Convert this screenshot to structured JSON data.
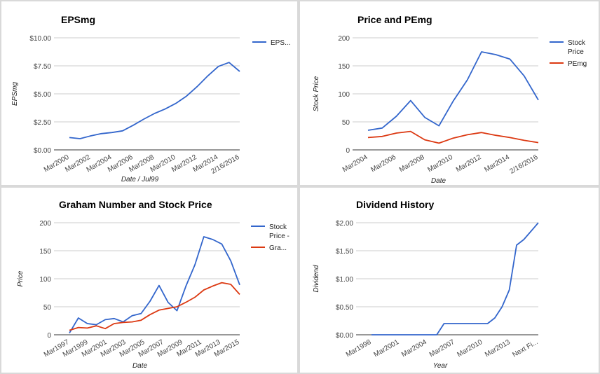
{
  "colors": {
    "blue": "#3366cc",
    "red": "#dc3912"
  },
  "chart_data": [
    {
      "id": "eps",
      "type": "line",
      "title": "EPSmg",
      "xlabel": "Date / Jul99",
      "ylabel": "EPSmg",
      "ylim": [
        0,
        10
      ],
      "y_ticks": [
        "$0.00",
        "$2.50",
        "$5.00",
        "$7.50",
        "$10.00"
      ],
      "x_tick_labels": [
        "Mar2000",
        "Mar2002",
        "Mar2004",
        "Mar2006",
        "Mar2008",
        "Mar2010",
        "Mar2012",
        "Mar2014",
        "2/16/2016"
      ],
      "legend_position": "right",
      "series": [
        {
          "name": "EPS...",
          "color": "#3366cc",
          "values": [
            1.1,
            1.0,
            1.25,
            1.45,
            1.55,
            1.7,
            2.2,
            2.75,
            3.25,
            3.65,
            4.15,
            4.8,
            5.65,
            6.6,
            7.45,
            7.8,
            7.0
          ]
        }
      ]
    },
    {
      "id": "pe",
      "type": "line",
      "title": "Price and PEmg",
      "xlabel": "Date",
      "ylabel": "Stock Price",
      "ylim": [
        0,
        200
      ],
      "y_ticks": [
        "0",
        "50",
        "100",
        "150",
        "200"
      ],
      "x_tick_labels": [
        "Mar2004",
        "Mar2006",
        "Mar2008",
        "Mar2010",
        "Mar2012",
        "Mar2014",
        "2/16/2016"
      ],
      "legend_position": "right",
      "series": [
        {
          "name": "Stock Price",
          "color": "#3366cc",
          "values": [
            35,
            39,
            60,
            88,
            58,
            43,
            87,
            125,
            175,
            170,
            162,
            132,
            89
          ]
        },
        {
          "name": "PEmg",
          "color": "#dc3912",
          "values": [
            22,
            24,
            30,
            33,
            18,
            12,
            21,
            27,
            31,
            26,
            22,
            17,
            13
          ]
        }
      ]
    },
    {
      "id": "graham",
      "type": "line",
      "title": "Graham Number and Stock Price",
      "xlabel": "Date",
      "ylabel": "Price",
      "ylim": [
        0,
        200
      ],
      "y_ticks": [
        "0",
        "50",
        "100",
        "150",
        "200"
      ],
      "x_tick_labels": [
        "Mar1997",
        "Mar1999",
        "Mar2001",
        "Mar2003",
        "Mar2005",
        "Mar2007",
        "Mar2009",
        "Mar2011",
        "Mar2013",
        "Mar2015"
      ],
      "legend_position": "right",
      "series": [
        {
          "name": "Stock Price -",
          "color": "#3366cc",
          "values": [
            3,
            30,
            20,
            18,
            27,
            29,
            23,
            34,
            38,
            60,
            88,
            58,
            43,
            87,
            125,
            175,
            170,
            162,
            132,
            89
          ]
        },
        {
          "name": "Gra...",
          "color": "#dc3912",
          "values": [
            8,
            13,
            12,
            16,
            11,
            20,
            22,
            23,
            26,
            36,
            44,
            47,
            50,
            58,
            67,
            80,
            87,
            93,
            90,
            72
          ]
        }
      ]
    },
    {
      "id": "dividend",
      "type": "line",
      "title": "Dividend History",
      "xlabel": "Year",
      "ylabel": "Dividend",
      "ylim": [
        0,
        2
      ],
      "y_ticks": [
        "$0.00",
        "$0.50",
        "$1.00",
        "$1.50",
        "$2.00"
      ],
      "x_tick_labels": [
        "Mar1998",
        "Mar2001",
        "Mar2004",
        "Mar2007",
        "Mar2010",
        "Mar2013",
        "Next Fi..."
      ],
      "series": [
        {
          "name": "",
          "color": "#3366cc",
          "values": [
            0,
            0,
            0,
            0,
            0,
            0,
            0,
            0,
            0,
            0,
            0.2,
            0.2,
            0.2,
            0.2,
            0.2,
            0.2,
            0.2,
            0.3,
            0.5,
            0.8,
            1.6,
            1.7,
            1.85,
            2.0
          ]
        }
      ]
    }
  ]
}
